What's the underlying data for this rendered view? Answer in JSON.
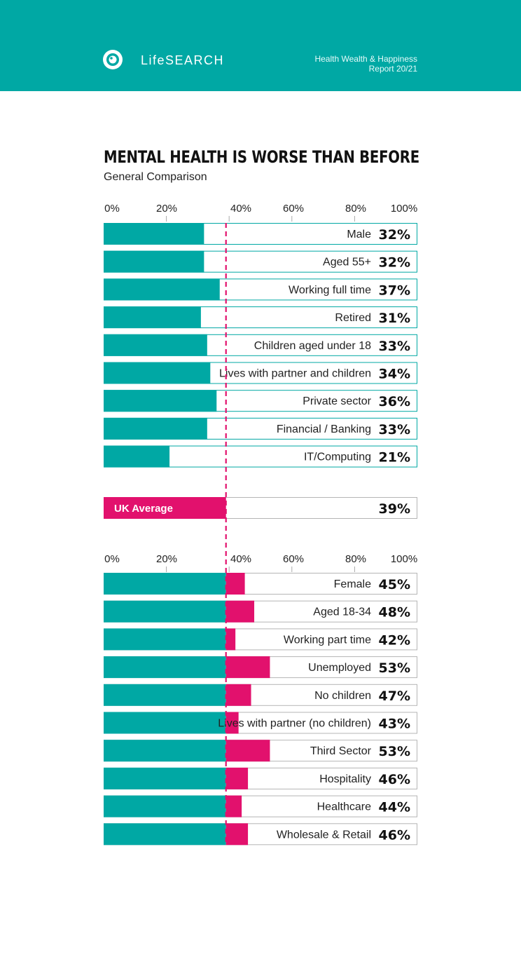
{
  "header": {
    "brand": "LifeSEARCH",
    "report_line1": "Health Wealth & Happiness",
    "report_line2": "Report 20/21"
  },
  "colors": {
    "teal": "#00a8a4",
    "magenta": "#e2116d",
    "outline_neutral": "#b5b5b5"
  },
  "chart_data": {
    "type": "bar",
    "orientation": "horizontal",
    "title": "MENTAL HEALTH IS WORSE THAN BEFORE",
    "subtitle": "General Comparison",
    "x_ticks": [
      "0%",
      "20%",
      "40%",
      "60%",
      "80%",
      "100%"
    ],
    "xlim": [
      0,
      100
    ],
    "reference_line": {
      "label": "UK Average",
      "value": 39,
      "display": "39%"
    },
    "groups": [
      {
        "name": "below_average",
        "categories": [
          "Male",
          "Aged 55+",
          "Working full time",
          "Retired",
          "Children aged under 18",
          "Lives with partner and children",
          "Private sector",
          "Financial / Banking",
          "IT/Computing"
        ],
        "values": [
          32,
          32,
          37,
          31,
          33,
          34,
          36,
          33,
          21
        ],
        "display": [
          "32%",
          "32%",
          "37%",
          "31%",
          "33%",
          "34%",
          "36%",
          "33%",
          "21%"
        ]
      },
      {
        "name": "above_average",
        "categories": [
          "Female",
          "Aged 18-34",
          "Working part time",
          "Unemployed",
          "No children",
          "Lives with partner (no children)",
          "Third Sector",
          "Hospitality",
          "Healthcare",
          "Wholesale & Retail"
        ],
        "values": [
          45,
          48,
          42,
          53,
          47,
          43,
          53,
          46,
          44,
          46
        ],
        "display": [
          "45%",
          "48%",
          "42%",
          "53%",
          "47%",
          "43%",
          "53%",
          "46%",
          "44%",
          "46%"
        ]
      }
    ]
  }
}
